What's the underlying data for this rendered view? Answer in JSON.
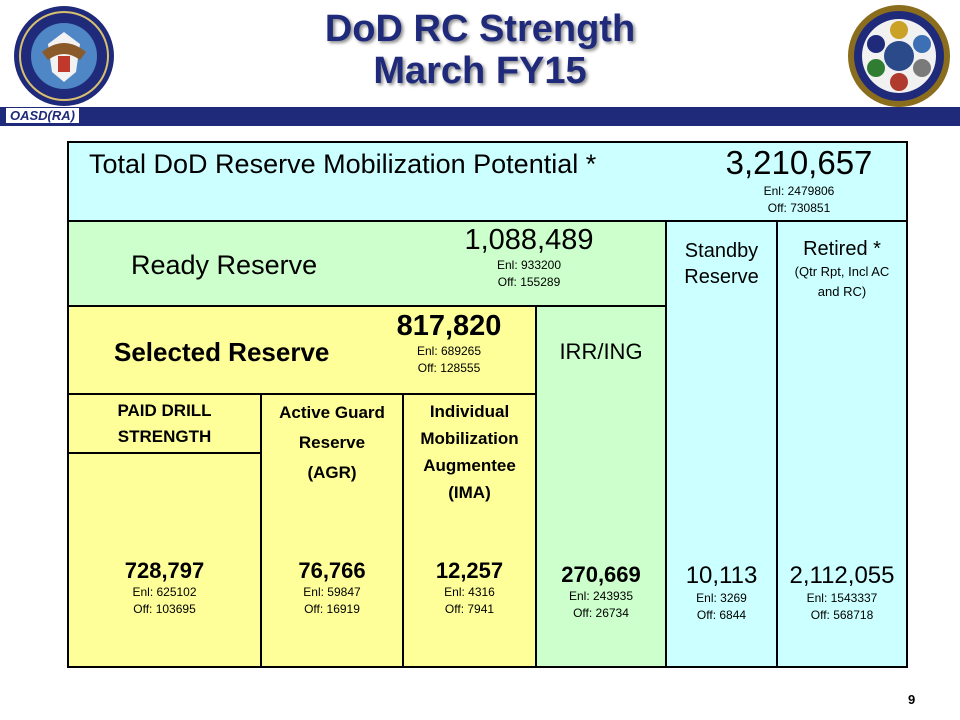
{
  "header": {
    "title_line1": "DoD RC Strength",
    "title_line2": "March FY15",
    "org": "OASD(RA)"
  },
  "total": {
    "label": "Total DoD Reserve Mobilization Potential *",
    "value": "3,210,657",
    "enl": "Enl: 2479806",
    "off": "Off: 730851"
  },
  "ready": {
    "label": "Ready Reserve",
    "value": "1,088,489",
    "enl": "Enl: 933200",
    "off": "Off: 155289"
  },
  "standby": {
    "label_line1": "Standby",
    "label_line2": "Reserve",
    "value": "10,113",
    "enl": "Enl: 3269",
    "off": "Off: 6844"
  },
  "retired": {
    "label_line1": "Retired *",
    "label_line2": "(Qtr Rpt, Incl AC",
    "label_line3": "and RC)",
    "value": "2,112,055",
    "enl": "Enl: 1543337",
    "off": "Off: 568718"
  },
  "selected": {
    "label": "Selected Reserve",
    "value": "817,820",
    "enl": "Enl: 689265",
    "off": "Off: 128555"
  },
  "irr": {
    "label": "IRR/ING",
    "value": "270,669",
    "enl": "Enl: 243935",
    "off": "Off: 26734"
  },
  "paid_drill": {
    "label_line1": "PAID DRILL",
    "label_line2": "STRENGTH",
    "value": "728,797",
    "enl": "Enl: 625102",
    "off": "Off: 103695"
  },
  "agr": {
    "label_line1": "Active Guard",
    "label_line2": "Reserve",
    "label_line3": "(AGR)",
    "value": "76,766",
    "enl": "Enl: 59847",
    "off": "Off: 16919"
  },
  "ima": {
    "label_line1": "Individual",
    "label_line2": "Mobilization",
    "label_line3": "Augmentee",
    "label_line4": "(IMA)",
    "value": "12,257",
    "enl": "Enl: 4316",
    "off": "Off: 7941"
  },
  "page_number": "9",
  "colors": {
    "cyan": "#ccffff",
    "green": "#ccffcc",
    "yellow": "#ffff99",
    "navy": "#1f2a7a"
  }
}
